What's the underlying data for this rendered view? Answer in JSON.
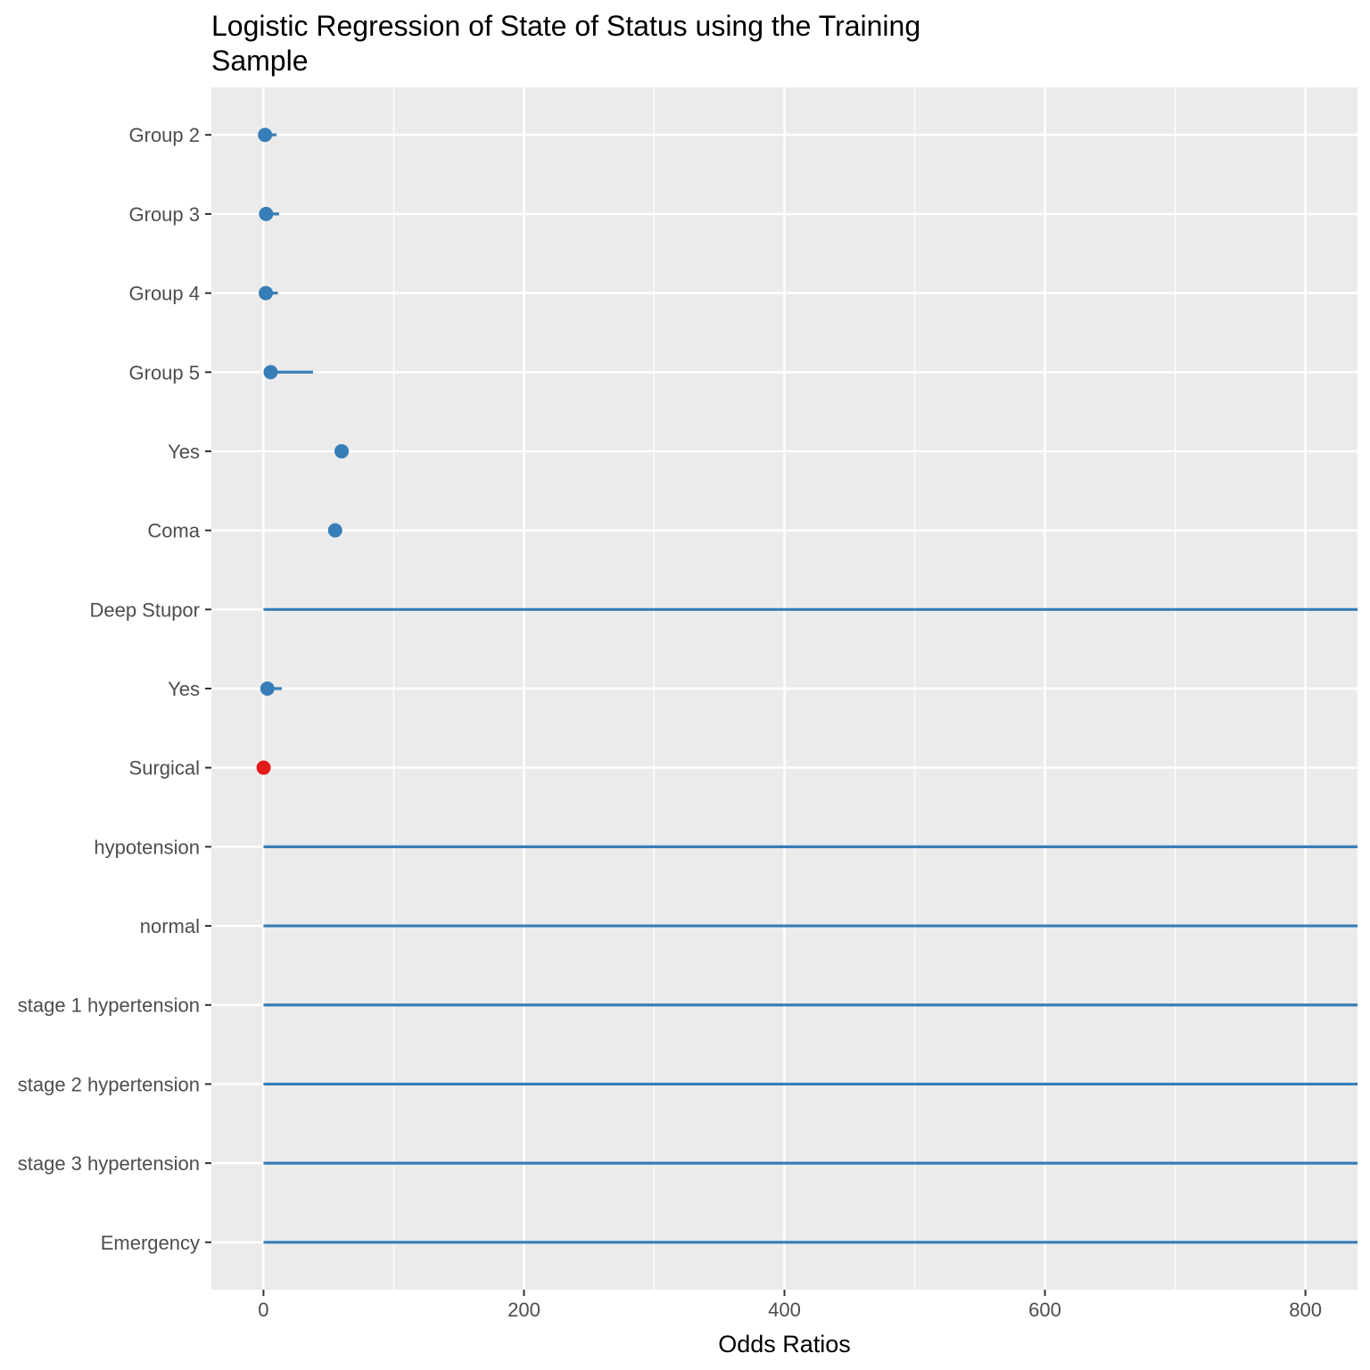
{
  "chart_data": {
    "type": "scatter",
    "title": "Logistic Regression of State of Status using the Training Sample",
    "xlabel": "Odds Ratios",
    "ylabel": "",
    "xlim": [
      -40,
      840
    ],
    "x_ticks": [
      0,
      200,
      400,
      600,
      800
    ],
    "grid": true,
    "legend": "none",
    "colors": {
      "panel": "#EBEBEB",
      "grid": "#FFFFFF",
      "positive": "#377EB8",
      "negative": "#E41A1C",
      "tick_text": "#4D4D4D"
    },
    "terms": [
      {
        "label": "Group 2",
        "estimate": 1.2,
        "low": 0.1,
        "high": 10,
        "color": "#377EB8"
      },
      {
        "label": "Group 3",
        "estimate": 2.0,
        "low": 0.2,
        "high": 12,
        "color": "#377EB8"
      },
      {
        "label": "Group 4",
        "estimate": 1.8,
        "low": 0.2,
        "high": 11,
        "color": "#377EB8"
      },
      {
        "label": "Group 5",
        "estimate": 5.5,
        "low": 0.5,
        "high": 38,
        "color": "#377EB8"
      },
      {
        "label": "Yes",
        "estimate": 60,
        "low": 60,
        "high": 60,
        "color": "#377EB8"
      },
      {
        "label": "Coma",
        "estimate": 55,
        "low": 55,
        "high": 55,
        "color": "#377EB8"
      },
      {
        "label": "Deep Stupor",
        "estimate": null,
        "low": 0,
        "high": 840,
        "color": "#377EB8"
      },
      {
        "label": "Yes",
        "estimate": 3,
        "low": 0.3,
        "high": 14,
        "color": "#377EB8"
      },
      {
        "label": "Surgical",
        "estimate": 0.1,
        "low": 0.0,
        "high": 0.5,
        "color": "#E41A1C"
      },
      {
        "label": "hypotension",
        "estimate": null,
        "low": 0,
        "high": 840,
        "color": "#377EB8"
      },
      {
        "label": "normal",
        "estimate": null,
        "low": 0,
        "high": 840,
        "color": "#377EB8"
      },
      {
        "label": "stage 1 hypertension",
        "estimate": null,
        "low": 0,
        "high": 840,
        "color": "#377EB8"
      },
      {
        "label": "stage 2 hypertension",
        "estimate": null,
        "low": 0,
        "high": 840,
        "color": "#377EB8"
      },
      {
        "label": "stage 3 hypertension",
        "estimate": null,
        "low": 0,
        "high": 840,
        "color": "#377EB8"
      },
      {
        "label": "Emergency",
        "estimate": null,
        "low": 0,
        "high": 840,
        "color": "#377EB8"
      }
    ]
  }
}
